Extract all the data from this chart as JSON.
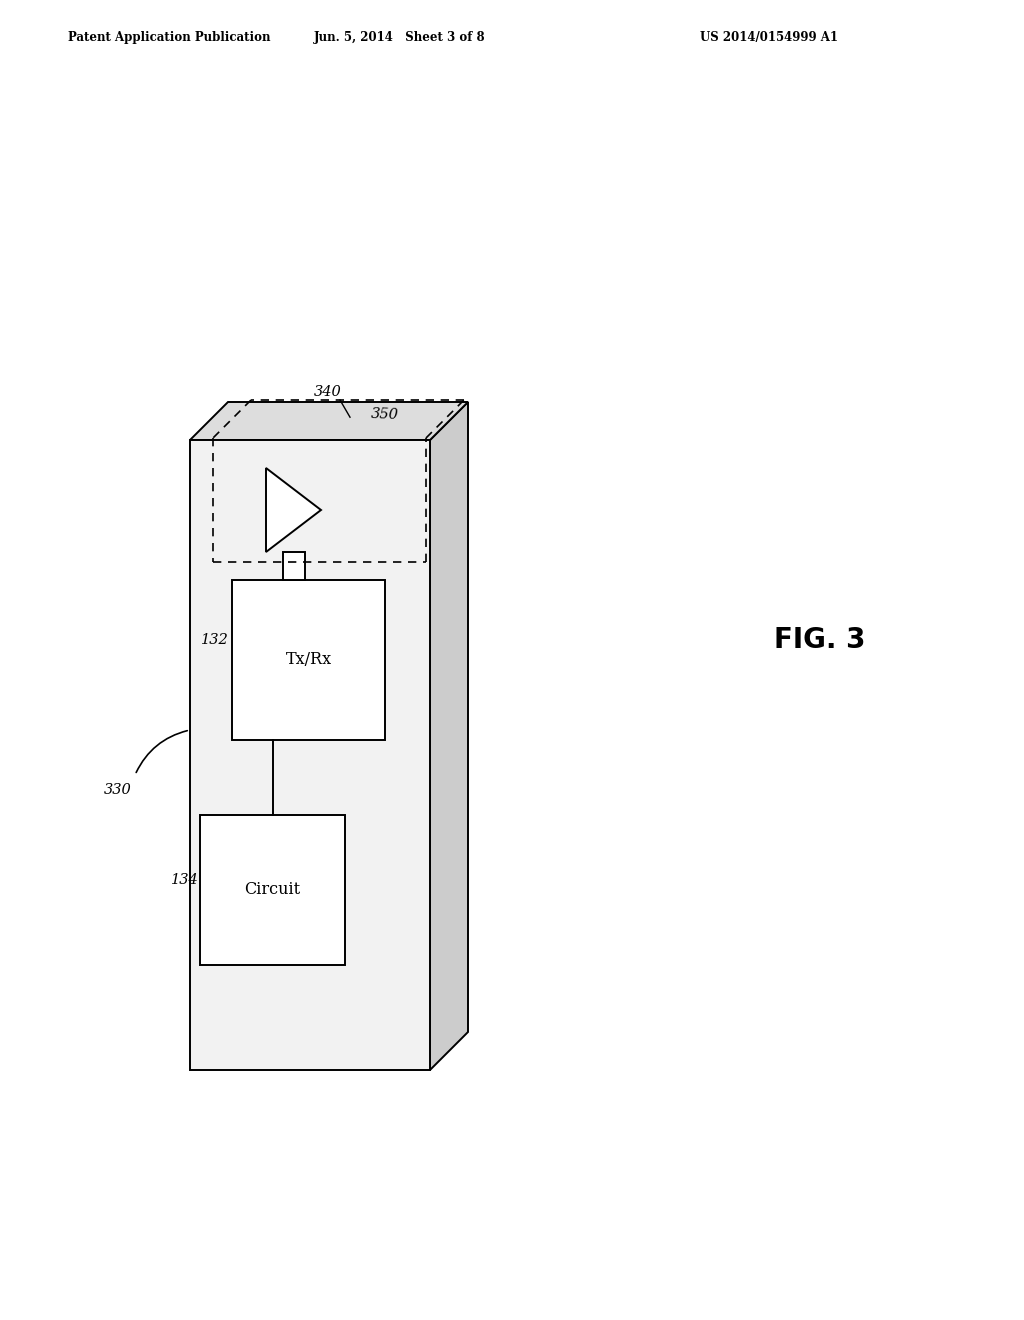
{
  "background_color": "#ffffff",
  "header_left": "Patent Application Publication",
  "header_center": "Jun. 5, 2014   Sheet 3 of 8",
  "header_right": "US 2014/0154999 A1",
  "fig_label": "FIG. 3",
  "label_330": "330",
  "label_340": "340",
  "label_350": "350",
  "label_132": "132",
  "label_134": "134",
  "line_color": "#000000",
  "lw": 1.4,
  "dlw": 1.2,
  "face_color_front": "#f0f0f0",
  "face_color_top": "#e0e0e0",
  "face_color_right": "#d0d0d0"
}
